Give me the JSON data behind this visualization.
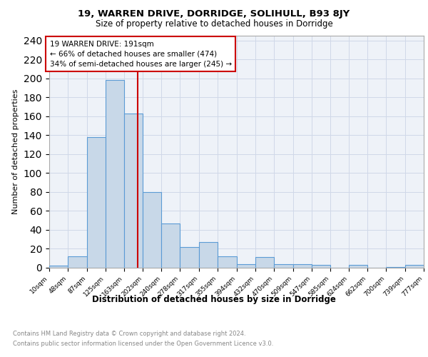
{
  "title": "19, WARREN DRIVE, DORRIDGE, SOLIHULL, B93 8JY",
  "subtitle": "Size of property relative to detached houses in Dorridge",
  "xlabel": "Distribution of detached houses by size in Dorridge",
  "ylabel": "Number of detached properties",
  "bin_edges": [
    10,
    48,
    87,
    125,
    163,
    202,
    240,
    278,
    317,
    355,
    394,
    432,
    470,
    509,
    547,
    585,
    624,
    662,
    700,
    739,
    777
  ],
  "counts": [
    2,
    12,
    138,
    198,
    163,
    80,
    47,
    22,
    27,
    12,
    4,
    11,
    4,
    4,
    3,
    0,
    3,
    0,
    1,
    3
  ],
  "bar_color": "#c8d8e8",
  "bar_edge_color": "#5b9bd5",
  "property_size": 191,
  "annotation_text_line1": "19 WARREN DRIVE: 191sqm",
  "annotation_text_line2": "← 66% of detached houses are smaller (474)",
  "annotation_text_line3": "34% of semi-detached houses are larger (245) →",
  "annotation_box_color": "#ffffff",
  "annotation_border_color": "#cc0000",
  "red_line_color": "#cc0000",
  "grid_color": "#d0d8e8",
  "background_color": "#eef2f8",
  "footer_line1": "Contains HM Land Registry data © Crown copyright and database right 2024.",
  "footer_line2": "Contains public sector information licensed under the Open Government Licence v3.0.",
  "yticks": [
    0,
    20,
    40,
    60,
    80,
    100,
    120,
    140,
    160,
    180,
    200,
    220,
    240
  ],
  "ylim": [
    0,
    245
  ]
}
